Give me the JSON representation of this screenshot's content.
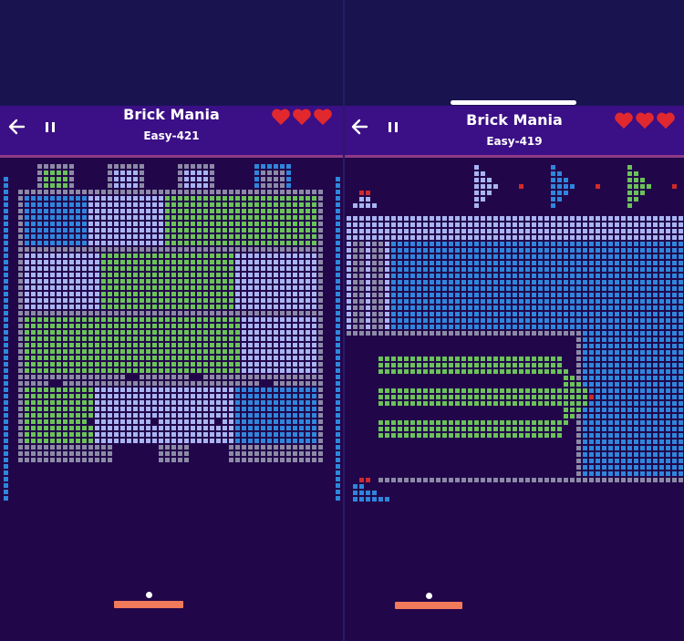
{
  "screens": [
    {
      "title": "Brick Mania",
      "level": "Easy-421",
      "lives": 3
    },
    {
      "title": "Brick Mania",
      "level": "Easy-419",
      "lives": 3
    }
  ],
  "colors": {
    "background": "#22064a",
    "header": "#3b0f86",
    "separator": "#8e3b86",
    "heart": "#e0282e",
    "paddle": "#f07a5a",
    "ball": "#ffffff",
    "brick_blue": "#2f86dc",
    "brick_green": "#6bc25a",
    "brick_lavender": "#a9b4f2",
    "brick_gray": "#8c8aa6",
    "brick_red": "#d02a2a"
  },
  "icons": {
    "back": "back-arrow-icon",
    "pause": "pause-icon",
    "life": "heart-icon"
  }
}
